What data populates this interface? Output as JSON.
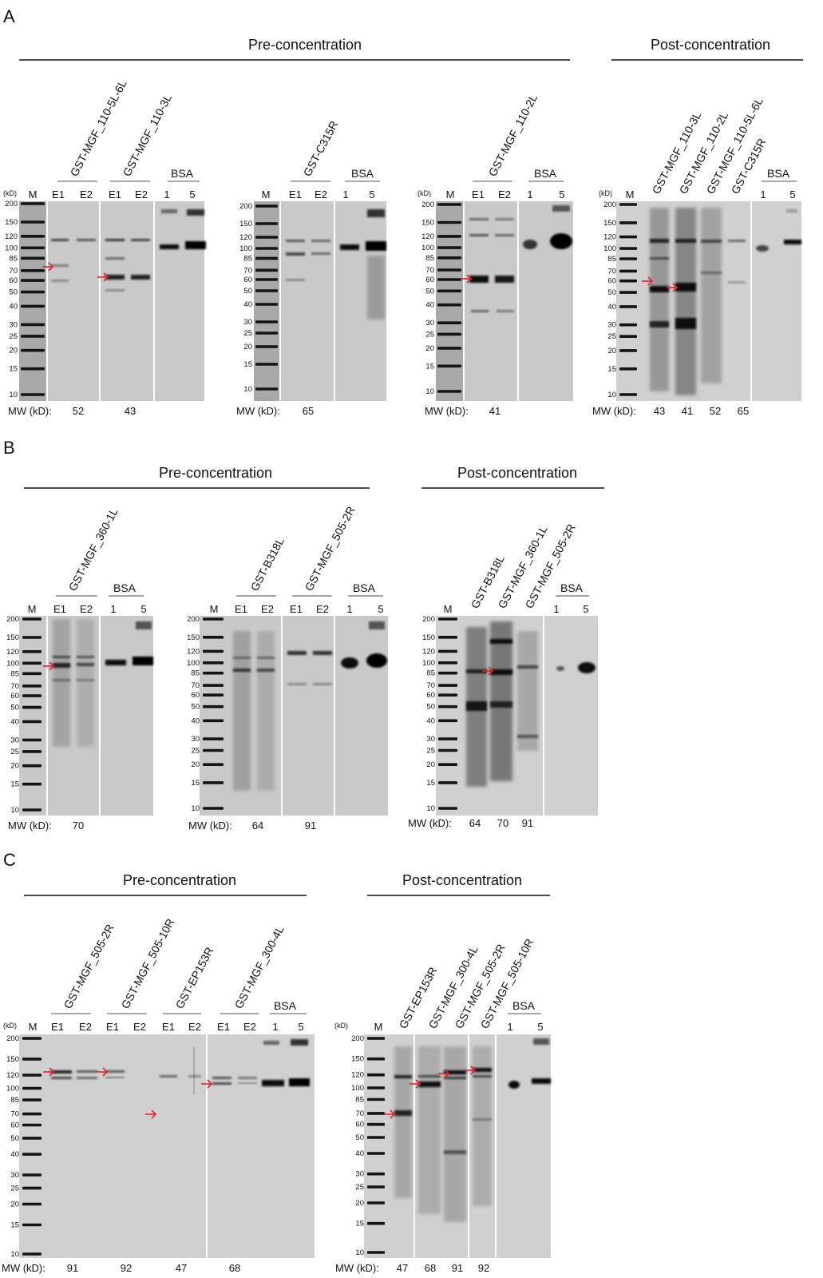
{
  "figure": {
    "panels": [
      {
        "letter": "A",
        "section_labels": [
          "Pre-concentration",
          "Post-concentration"
        ],
        "gels": [
          {
            "labels": [
              "GST-MGF_110-5L-6L",
              "GST-MGF_110-3L",
              "BSA"
            ],
            "lanes": [
              "M",
              "E1",
              "E2",
              "E1",
              "E2",
              "1",
              "5"
            ],
            "mw_label": "MW (kD):",
            "mw": [
              "52",
              "43"
            ]
          },
          {
            "labels": [
              "GST-C315R",
              "BSA"
            ],
            "lanes": [
              "M",
              "E1",
              "E2",
              "1",
              "5"
            ],
            "mw_label": "MW (kD):",
            "mw": [
              "65"
            ]
          },
          {
            "labels": [
              "GST-MGF_110-2L",
              "BSA"
            ],
            "lanes": [
              "M",
              "E1",
              "E2",
              "1",
              "5"
            ],
            "mw_label": "MW (kD):",
            "mw": [
              "41"
            ]
          },
          {
            "labels": [
              "GST-MGF_110-3L",
              "GST-MGF_110-2L",
              "GST-MGF_110-5L-6L",
              "GST-C315R",
              "BSA"
            ],
            "lanes": [
              "M",
              "1",
              "5"
            ],
            "mw_label": "MW (kD):",
            "mw": [
              "43",
              "41",
              "52",
              "65"
            ]
          }
        ]
      },
      {
        "letter": "B",
        "section_labels": [
          "Pre-concentration",
          "Post-concentration"
        ],
        "gels": [
          {
            "labels": [
              "GST-MGF_360-1L",
              "BSA"
            ],
            "lanes": [
              "M",
              "E1",
              "E2",
              "1",
              "5"
            ],
            "mw_label": "MW (kD):",
            "mw": [
              "70"
            ]
          },
          {
            "labels": [
              "GST-B318L",
              "GST-MGF_505-2R",
              "BSA"
            ],
            "lanes": [
              "M",
              "E1",
              "E2",
              "E1",
              "E2",
              "1",
              "5"
            ],
            "mw_label": "MW (kD):",
            "mw": [
              "64",
              "91"
            ]
          },
          {
            "labels": [
              "GST-B318L",
              "GST-MGF_360-1L",
              "GST-MGF_505-2R",
              "BSA"
            ],
            "lanes": [
              "M",
              "1",
              "5"
            ],
            "mw_label": "MW (kD):",
            "mw": [
              "64",
              "70",
              "91"
            ]
          }
        ]
      },
      {
        "letter": "C",
        "section_labels": [
          "Pre-concentration",
          "Post-concentration"
        ],
        "gels": [
          {
            "labels": [
              "GST-MGF_505-2R",
              "GST-MGF_505-10R",
              "GST-EP153R",
              "GST-MGF_300-4L",
              "BSA"
            ],
            "lanes": [
              "M",
              "E1",
              "E2",
              "E1",
              "E2",
              "E1",
              "E2",
              "E1",
              "E2",
              "1",
              "5"
            ],
            "mw_label": "MW (kD):",
            "mw": [
              "91",
              "92",
              "47",
              "68"
            ]
          },
          {
            "labels": [
              "GST-EP153R",
              "GST-MGF_300-4L",
              "GST-MGF_505-2R",
              "GST-MGF_505-10R",
              "BSA"
            ],
            "lanes": [
              "M",
              "1",
              "5"
            ],
            "mw_label": "MW (kD):",
            "mw": [
              "47",
              "68",
              "91",
              "92"
            ]
          }
        ]
      }
    ],
    "ladder_unit": "(kD)",
    "ladder_marks": [
      "200",
      "150",
      "120",
      "100",
      "85",
      "70",
      "60",
      "50",
      "40",
      "30",
      "25",
      "20",
      "15",
      "10"
    ],
    "colors": {
      "arrow": "#e0242b",
      "gel": "#c9c9c9",
      "band": "#1a1a1a"
    }
  }
}
